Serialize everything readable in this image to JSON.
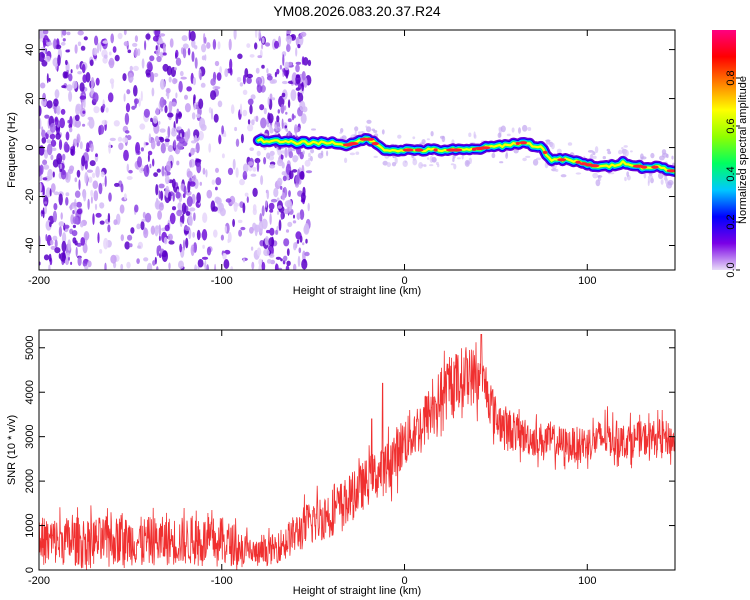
{
  "chart_data": [
    {
      "type": "heatmap",
      "title": "YM08.2026.083.20.37.R24",
      "xlabel": "Height of straight line (km)",
      "ylabel": "Frequency (Hz)",
      "xlim": [
        -200,
        148
      ],
      "ylim": [
        -50,
        48
      ],
      "xticks": [
        -200,
        -100,
        0,
        100
      ],
      "yticks": [
        -40,
        -20,
        0,
        20,
        40
      ],
      "colorbar": {
        "label": "Normalized spectral amplitude",
        "range": [
          0.0,
          1.0
        ],
        "ticks": [
          "0.0",
          "0.2",
          "0.4",
          "0.6",
          "0.8"
        ],
        "stops": [
          "#e8dcf8",
          "#7a00e6",
          "#0000ff",
          "#00c8ff",
          "#00ff60",
          "#90ff00",
          "#ffff00",
          "#ff8000",
          "#ff0000",
          "#ff0080"
        ]
      },
      "ridge": {
        "description": "coherent spectral line",
        "x": [
          -80,
          -60,
          -40,
          -30,
          -20,
          -15,
          -10,
          0,
          20,
          35,
          45,
          55,
          65,
          75,
          80,
          90,
          100,
          110,
          120,
          130,
          140,
          148
        ],
        "frequency": [
          3,
          2,
          2,
          1,
          4,
          1,
          -1,
          -1,
          -1,
          -1,
          0,
          1,
          2,
          0,
          -5,
          -5,
          -7,
          -8,
          -6,
          -8,
          -8,
          -10
        ]
      },
      "noise_region_x": [
        -200,
        -52
      ]
    },
    {
      "type": "line",
      "xlabel": "Height of straight line (km)",
      "ylabel": "SNR (10 * v/v)",
      "xlim": [
        -200,
        148
      ],
      "ylim": [
        0,
        5400
      ],
      "xticks": [
        -200,
        -100,
        0,
        100
      ],
      "yticks": [
        0,
        1000,
        2000,
        3000,
        4000,
        5000
      ],
      "series": [
        {
          "name": "SNR",
          "color": "#f03030",
          "x": [
            -200,
            -180,
            -160,
            -140,
            -120,
            -100,
            -80,
            -70,
            -60,
            -50,
            -40,
            -30,
            -20,
            -10,
            0,
            10,
            20,
            30,
            35,
            40,
            45,
            50,
            60,
            70,
            80,
            90,
            100,
            110,
            120,
            130,
            140,
            148
          ],
          "values": [
            650,
            650,
            650,
            650,
            650,
            650,
            350,
            500,
            800,
            1100,
            1300,
            1600,
            2000,
            2300,
            2900,
            3300,
            3900,
            4300,
            4400,
            4300,
            4100,
            3400,
            3100,
            2950,
            2900,
            2800,
            2850,
            3000,
            2900,
            2950,
            3000,
            2900
          ],
          "noise_amplitude": [
            550,
            550,
            550,
            550,
            550,
            550,
            300,
            350,
            450,
            550,
            550,
            550,
            550,
            600,
            600,
            600,
            650,
            700,
            700,
            650,
            600,
            500,
            450,
            400,
            400,
            400,
            400,
            450,
            400,
            400,
            400,
            400
          ],
          "spikes": [
            {
              "x": -12,
              "value": 4200
            },
            {
              "x": -18,
              "value": 3400
            },
            {
              "x": 42,
              "value": 5300
            }
          ]
        }
      ]
    }
  ]
}
